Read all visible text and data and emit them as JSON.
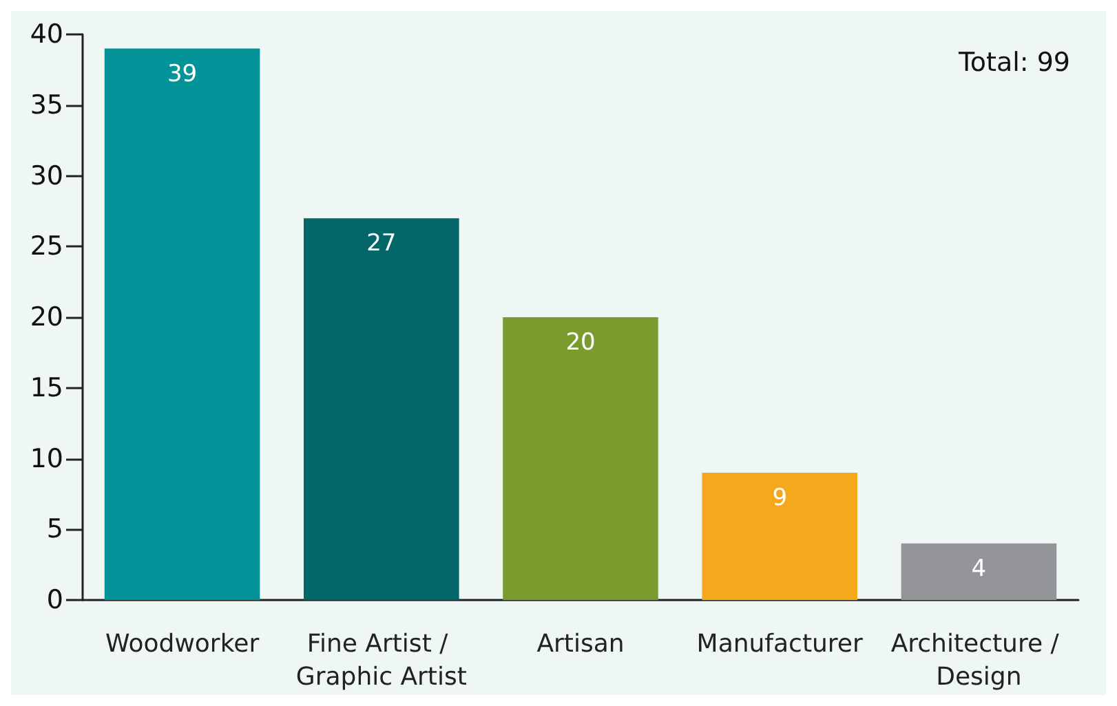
{
  "chart_data": {
    "type": "bar",
    "categories": [
      "Woodworker",
      "Fine Artist / Graphic Artist",
      "Artisan",
      "Manufacturer",
      "Architecture / Design"
    ],
    "values": [
      39,
      27,
      20,
      9,
      4
    ],
    "colors": [
      "#05939a",
      "#036669",
      "#7a9c2e",
      "#f6a81c",
      "#939598"
    ],
    "ylim": [
      0,
      40
    ],
    "yticks": [
      0,
      5,
      10,
      15,
      20,
      25,
      30,
      35,
      40
    ],
    "grid": false,
    "data_labels": true,
    "annotations": [
      "Total: 99"
    ]
  }
}
